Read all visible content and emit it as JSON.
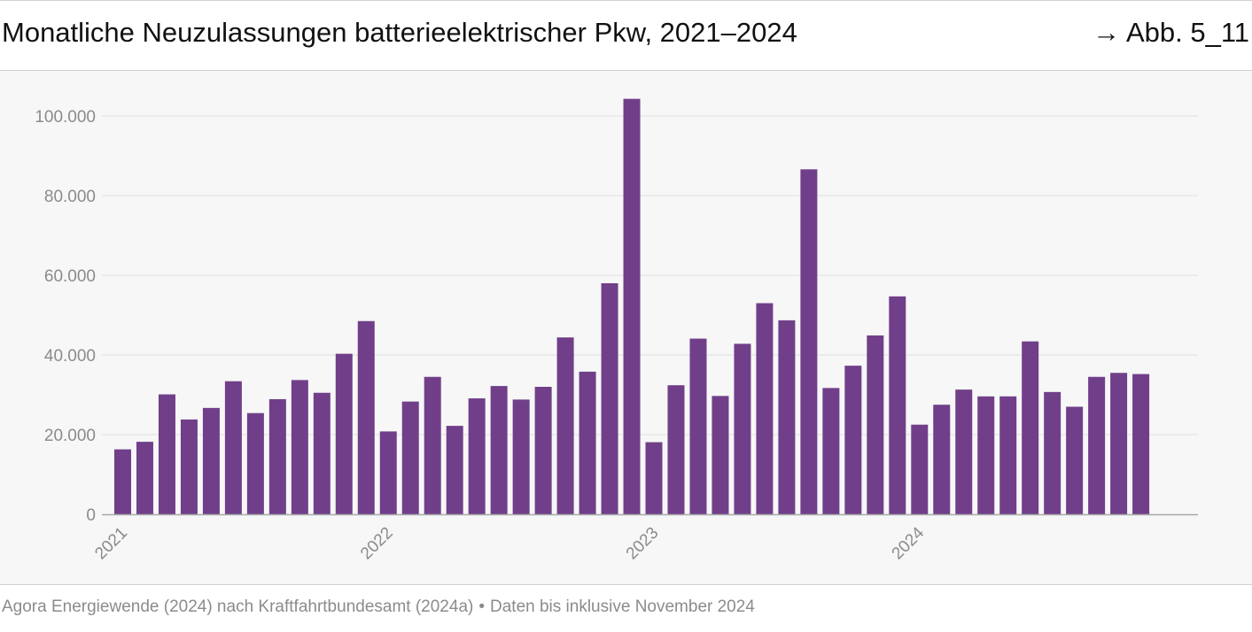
{
  "header": {
    "title": "Monatliche Neuzulassungen batterieelektrischer Pkw, 2021–2024",
    "figure_ref": "→ Abb. 5_11"
  },
  "footer": {
    "source": "Agora Energiewende (2024) nach Kraftfahrtbundesamt (2024a)",
    "separator": "•",
    "note": "Daten bis inklusive November 2024"
  },
  "colors": {
    "bar": "#713f8a",
    "grid": "#e6e8e6",
    "axis": "#a8aaa9",
    "tick_text": "#8a8c8b"
  },
  "chart_data": {
    "type": "bar",
    "title": "Monatliche Neuzulassungen batterieelektrischer Pkw, 2021–2024",
    "xlabel": "",
    "ylabel": "",
    "ylim": [
      0,
      105000
    ],
    "yticks": [
      0,
      20000,
      40000,
      60000,
      80000,
      100000
    ],
    "ytick_labels": [
      "0",
      "20.000",
      "40.000",
      "60.000",
      "80.000",
      "100.000"
    ],
    "grid": true,
    "year_labels": [
      {
        "label": "2021",
        "index": 0
      },
      {
        "label": "2022",
        "index": 12
      },
      {
        "label": "2023",
        "index": 24
      },
      {
        "label": "2024",
        "index": 36
      }
    ],
    "categories": [
      "2021-01",
      "2021-02",
      "2021-03",
      "2021-04",
      "2021-05",
      "2021-06",
      "2021-07",
      "2021-08",
      "2021-09",
      "2021-10",
      "2021-11",
      "2021-12",
      "2022-01",
      "2022-02",
      "2022-03",
      "2022-04",
      "2022-05",
      "2022-06",
      "2022-07",
      "2022-08",
      "2022-09",
      "2022-10",
      "2022-11",
      "2022-12",
      "2023-01",
      "2023-02",
      "2023-03",
      "2023-04",
      "2023-05",
      "2023-06",
      "2023-07",
      "2023-08",
      "2023-09",
      "2023-10",
      "2023-11",
      "2023-12",
      "2024-01",
      "2024-02",
      "2024-03",
      "2024-04",
      "2024-05",
      "2024-06",
      "2024-07",
      "2024-08",
      "2024-09",
      "2024-10",
      "2024-11"
    ],
    "values": [
      16300,
      18200,
      30100,
      23800,
      26700,
      33400,
      25400,
      28900,
      33700,
      30500,
      40300,
      48500,
      20800,
      28300,
      34500,
      22200,
      29100,
      32200,
      28800,
      32000,
      44400,
      35800,
      58000,
      104300,
      18100,
      32400,
      44100,
      29700,
      42800,
      53000,
      48700,
      86600,
      31700,
      37300,
      44900,
      54700,
      22500,
      27500,
      31300,
      29600,
      29600,
      43400,
      30700,
      27000,
      34500,
      35500,
      35200
    ]
  }
}
